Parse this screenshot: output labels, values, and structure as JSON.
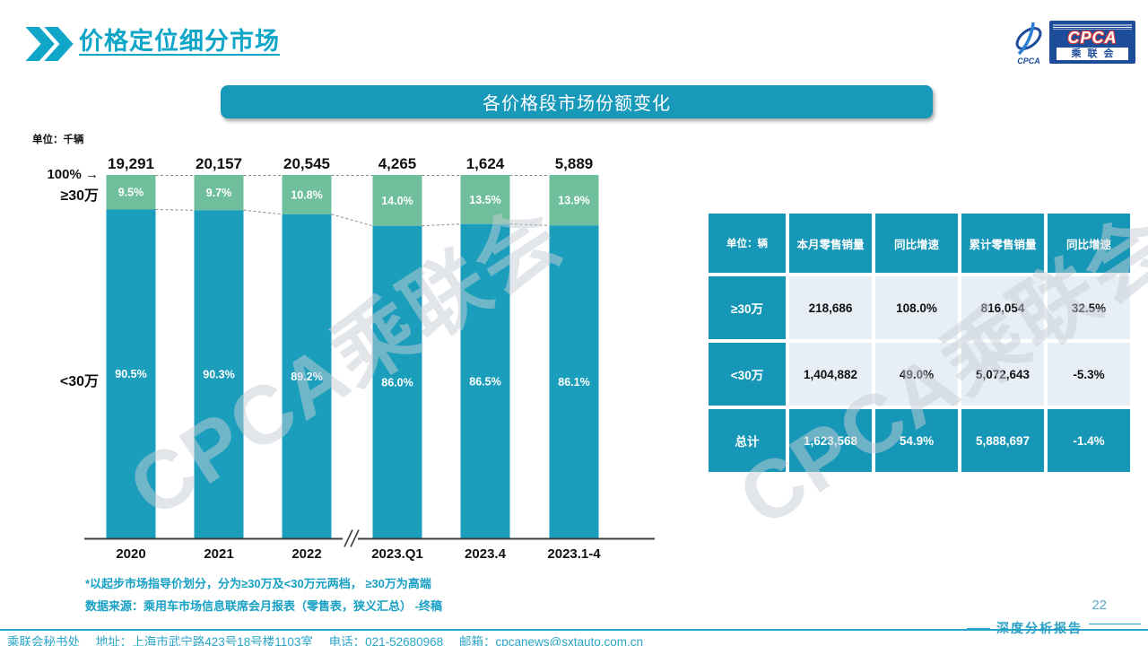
{
  "colors": {
    "accent": "#17A0C4",
    "title": "#10A6C8",
    "bar_teal": "#1B9EBC",
    "bar_green": "#6FBE9C",
    "table_teal": "#1797B7",
    "cell_bg": "#E8EEF6",
    "logo_blue": "#1D4C9B",
    "logo_red": "#D93A35"
  },
  "header": {
    "title": "价格定位细分市场"
  },
  "logo": {
    "emblem_caption": "CPCA",
    "cpca": "CPCA",
    "cn": "乘联会"
  },
  "banner": {
    "title": "各价格段市场份额变化"
  },
  "chart": {
    "unit_label": "单位：千辆",
    "pct_100_label": "100%",
    "arrow_glyph": "→",
    "high_label": "≥30万",
    "low_label": "<30万"
  },
  "chart_data": {
    "type": "bar",
    "subtype": "100%-stacked-column",
    "title": "各价格段市场份额变化",
    "unit": "千辆",
    "categories": [
      "2020",
      "2021",
      "2022",
      "2023.Q1",
      "2023.4",
      "2023.1-4"
    ],
    "totals": [
      "19,291",
      "20,157",
      "20,545",
      "4,265",
      "1,624",
      "5,889"
    ],
    "series": [
      {
        "name": "≥30万",
        "values": [
          9.5,
          9.7,
          10.8,
          14.0,
          13.5,
          13.9
        ],
        "color": "#6FBE9C"
      },
      {
        "name": "<30万",
        "values": [
          90.5,
          90.3,
          89.2,
          86.0,
          86.5,
          86.1
        ],
        "color": "#1B9EBC"
      }
    ],
    "ylim": [
      0,
      100
    ],
    "axis_break_after": "2022",
    "legend_position": "left-of-bars",
    "grid": false
  },
  "footnotes": [
    "*以起步市场指导价划分，分为≥30万及<30万元两档， ≥30万为高端",
    "数据来源：乘用车市场信息联席会月报表（零售表，狭义汇总） -终稿"
  ],
  "table": {
    "headers": [
      "单位：辆",
      "本月零售销量",
      "同比增速",
      "累计零售销量",
      "同比增速"
    ],
    "rows": [
      {
        "label": "≥30万",
        "values": [
          "218,686",
          "108.0%",
          "816,054",
          "32.5%"
        ]
      },
      {
        "label": "<30万",
        "values": [
          "1,404,882",
          "49.0%",
          "5,072,643",
          "-5.3%"
        ]
      },
      {
        "label": "总计",
        "values": [
          "1,623,568",
          "54.9%",
          "5,888,697",
          "-1.4%"
        ]
      }
    ]
  },
  "watermark": {
    "text": "CPCA乘联会"
  },
  "footer": {
    "org": "乘联会秘书处",
    "address": "地址：上海市武宁路423号18号楼1103室",
    "phone": "电话：021-52680968",
    "email": "邮箱：cpcanews@sxtauto.com.cn",
    "page_number": "22",
    "report_label": "深度分析报告"
  }
}
